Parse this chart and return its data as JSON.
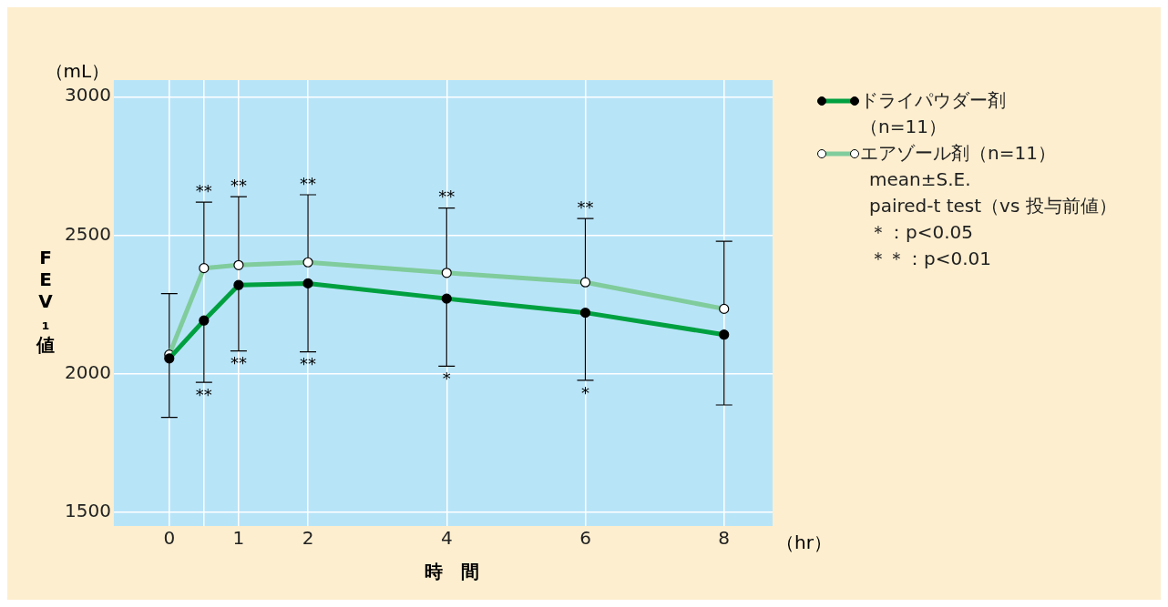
{
  "chart_data": {
    "type": "line",
    "xlabel": "時　間",
    "ylabel": "FEV₁値",
    "x": [
      0,
      0.5,
      1,
      2,
      4,
      6,
      8
    ],
    "series": [
      {
        "name": "ドライパウダー剤（n=11）",
        "color": "#00a040",
        "values": [
          2055,
          2192,
          2320,
          2326,
          2271,
          2220,
          2141
        ],
        "errors": [
          [
            1842,
            2055
          ],
          [
            1969,
            2192
          ],
          [
            2082,
            2320
          ],
          [
            2079,
            2326
          ],
          [
            2027,
            2271
          ],
          [
            1976,
            2220
          ],
          [
            1887,
            2141
          ]
        ]
      },
      {
        "name": "エアゾール剤（n=11）",
        "color": "#80cc9c",
        "values": [
          2069,
          2381,
          2392,
          2402,
          2364,
          2330,
          2234
        ],
        "errors": [
          [
            2069,
            2289
          ],
          [
            2381,
            2619
          ],
          [
            2392,
            2639
          ],
          [
            2402,
            2646
          ],
          [
            2364,
            2598
          ],
          [
            2330,
            2560
          ],
          [
            2234,
            2478
          ]
        ]
      }
    ],
    "xlim": [
      -0.8,
      8.7
    ],
    "xticks": [
      0,
      {
        "value": 0.5,
        "label": null
      },
      1,
      2,
      4,
      6,
      8
    ],
    "ylim": [
      1450,
      3060
    ],
    "yticks": [
      1500,
      2000,
      2500,
      3000
    ],
    "grid": true,
    "legend": "right",
    "marker": "circle",
    "line_style": "solid",
    "annotations": [
      "（mL）",
      "（hr）",
      "mean±S.E.",
      "paired-t test（vs 投与前値）",
      "＊：p<0.05",
      "＊＊：p<0.01",
      {
        "text": "**",
        "x": 0.5,
        "y": 2619
      },
      {
        "text": "**",
        "x": 1,
        "y": 2639
      },
      {
        "text": "**",
        "x": 2,
        "y": 2646
      },
      {
        "text": "**",
        "x": 4,
        "y": 2598
      },
      {
        "text": "**",
        "x": 6,
        "y": 2560
      },
      {
        "text": "**",
        "x": 0.5,
        "y": 1969
      },
      {
        "text": "**",
        "x": 1,
        "y": 2082
      },
      {
        "text": "**",
        "x": 2,
        "y": 2079
      },
      {
        "text": "*",
        "x": 4,
        "y": 2027
      },
      {
        "text": "*",
        "x": 6,
        "y": 1976
      }
    ]
  }
}
